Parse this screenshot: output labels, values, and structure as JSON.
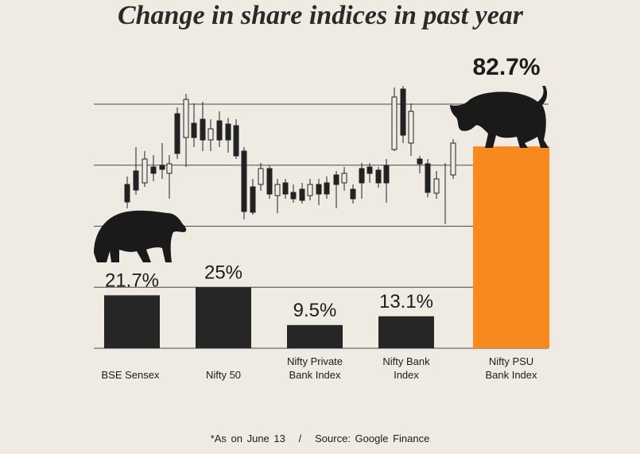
{
  "chart_data": {
    "type": "bar",
    "title": "Change in share indices in past year",
    "categories": [
      "BSE Sensex",
      "Nifty 50",
      "Nifty Private Bank Index",
      "Nifty Bank Index",
      "Nifty PSU Bank Index"
    ],
    "values": [
      21.7,
      25,
      9.5,
      13.1,
      82.7
    ],
    "value_labels": [
      "21.7%",
      "25%",
      "9.5%",
      "13.1%",
      "82.7%"
    ],
    "colors": [
      "#262626",
      "#262626",
      "#262626",
      "#262626",
      "#f7891f"
    ],
    "ylim": [
      0,
      100
    ],
    "yticks": [
      0,
      25,
      50,
      75,
      100
    ],
    "grid": true,
    "note": "*As on June 13   /   Source: Google Finance"
  }
}
